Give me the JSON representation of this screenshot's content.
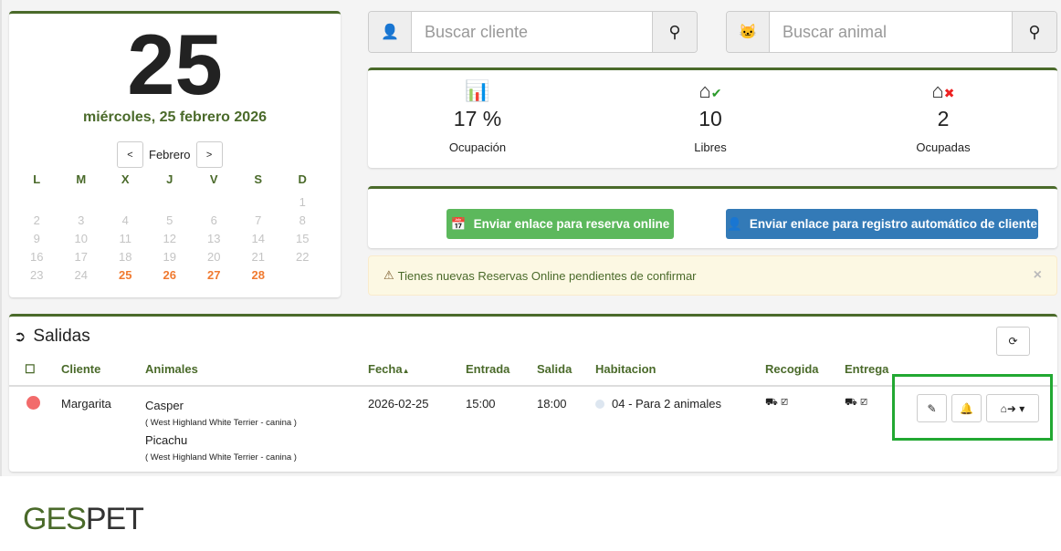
{
  "calendar": {
    "day": "25",
    "date_text": "miércoles, 25 febrero 2026",
    "month": "Febrero",
    "prev": "<",
    "next": ">",
    "weekdays": [
      "L",
      "M",
      "X",
      "J",
      "V",
      "S",
      "D"
    ],
    "weeks": [
      [
        "",
        "",
        "",
        "",
        "",
        "",
        "1"
      ],
      [
        "2",
        "3",
        "4",
        "5",
        "6",
        "7",
        "8"
      ],
      [
        "9",
        "10",
        "11",
        "12",
        "13",
        "14",
        "15"
      ],
      [
        "16",
        "17",
        "18",
        "19",
        "20",
        "21",
        "22"
      ],
      [
        "23",
        "24",
        "25",
        "26",
        "27",
        "28",
        ""
      ]
    ],
    "active_days": [
      "25",
      "26",
      "27",
      "28"
    ]
  },
  "search_client": {
    "placeholder": "Buscar cliente"
  },
  "search_animal": {
    "placeholder": "Buscar animal"
  },
  "stats": [
    {
      "value": "17 %",
      "label": "Ocupación",
      "icon": "bar-chart-icon"
    },
    {
      "value": "10",
      "label": "Libres",
      "icon": "house-check-icon"
    },
    {
      "value": "2",
      "label": "Ocupadas",
      "icon": "house-x-icon"
    }
  ],
  "actions": {
    "online_booking": "Enviar enlace para reserva online",
    "client_registration": "Enviar enlace para registro automático de cliente"
  },
  "alert": {
    "text": "Tienes nuevas Reservas Online pendientes de confirmar",
    "close": "×"
  },
  "salidas": {
    "title": "Salidas",
    "columns": [
      "Cliente",
      "Animales",
      "Fecha",
      "Entrada",
      "Salida",
      "Habitacion",
      "Recogida",
      "Entrega"
    ],
    "rows": [
      {
        "cliente": "Margarita",
        "status_color": "#f26b6b",
        "animals": [
          {
            "name": "Casper",
            "breed": "( West Highland White Terrier - canina )"
          },
          {
            "name": "Picachu",
            "breed": "( West Highland White Terrier - canina )"
          }
        ],
        "fecha": "2026-02-25",
        "entrada": "15:00",
        "salida": "18:00",
        "habitacion": "04 - Para 2 animales"
      }
    ]
  },
  "logo": "GESPET",
  "colors": {
    "brand": "#4a6a2a",
    "green_btn": "#5cb85c",
    "blue_btn": "#337ab7",
    "active_day": "#f07a30"
  }
}
